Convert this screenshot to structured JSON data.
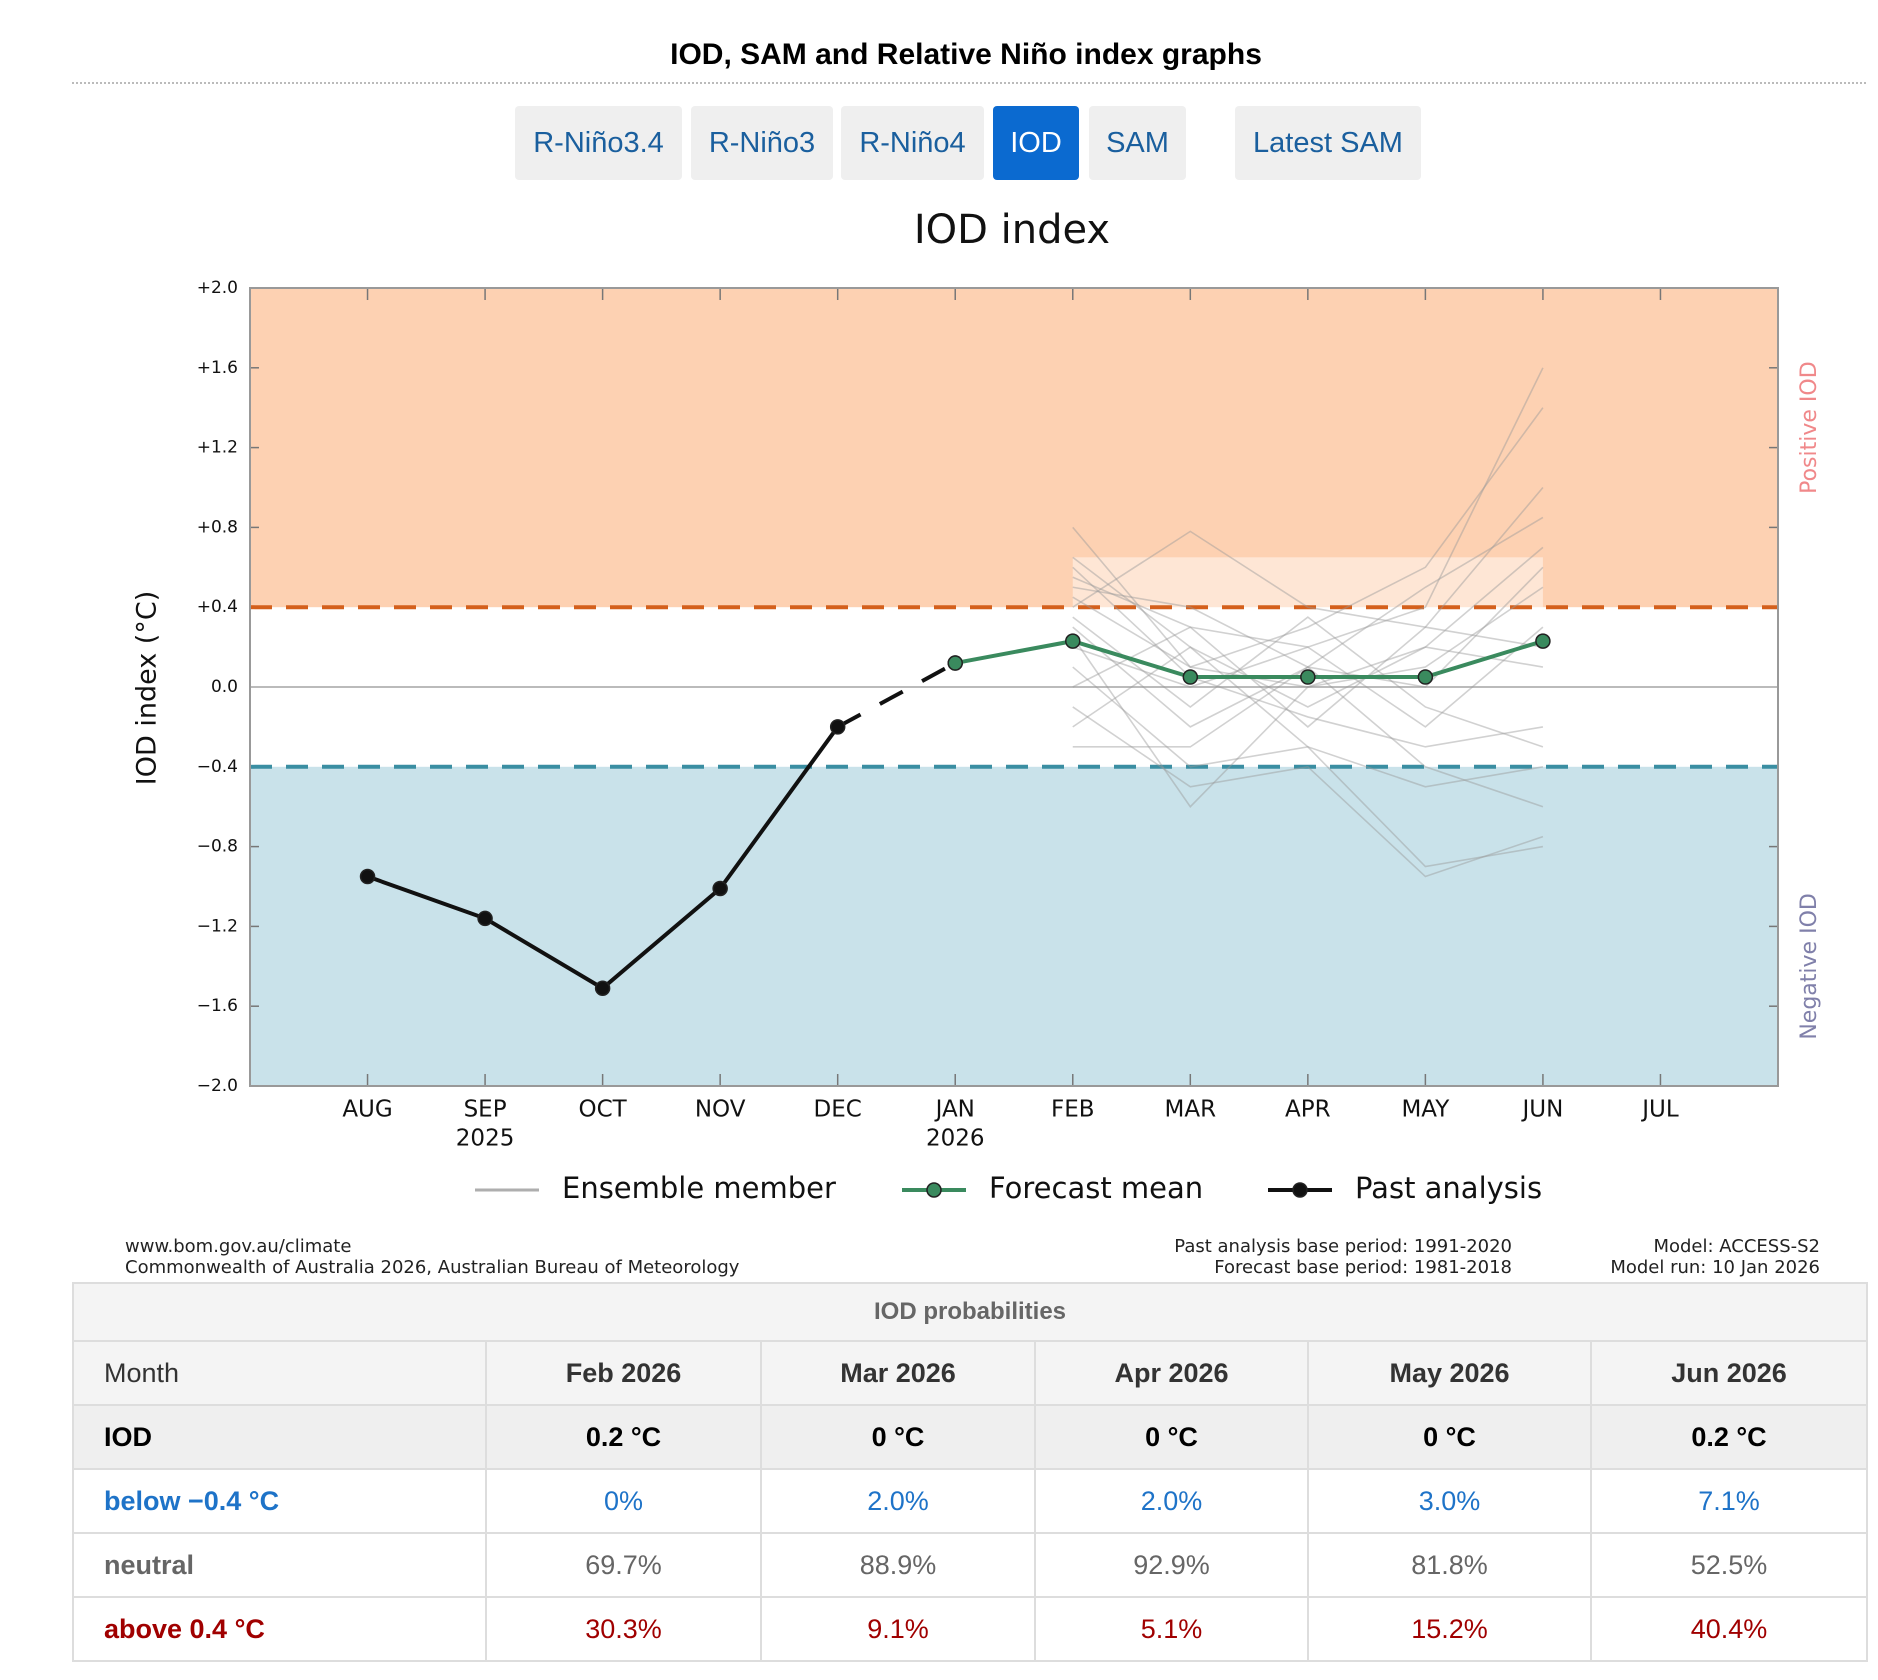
{
  "page_title": "IOD, SAM and Relative Niño index graphs",
  "tabs": {
    "items": [
      "R-Niño3.4",
      "R-Niño3",
      "R-Niño4",
      "IOD",
      "SAM",
      "Latest SAM"
    ],
    "active": 3
  },
  "chart_data": {
    "type": "line",
    "title": "IOD index",
    "y_label": "IOD index (°C)",
    "categories": [
      "AUG",
      "SEP",
      "OCT",
      "NOV",
      "DEC",
      "JAN",
      "FEB",
      "MAR",
      "APR",
      "MAY",
      "JUN",
      "JUL"
    ],
    "category_years": [
      null,
      "2025",
      null,
      null,
      null,
      "2026",
      null,
      null,
      null,
      null,
      null,
      null
    ],
    "ylim": [
      -2.0,
      2.0
    ],
    "yticks": [
      {
        "value": 2.0,
        "label": "+2.0"
      },
      {
        "value": 1.6,
        "label": "+1.6"
      },
      {
        "value": 1.2,
        "label": "+1.2"
      },
      {
        "value": 0.8,
        "label": "+0.8"
      },
      {
        "value": 0.4,
        "label": "+0.4"
      },
      {
        "value": 0.0,
        "label": "0.0"
      },
      {
        "value": -0.4,
        "label": "−0.4"
      },
      {
        "value": -0.8,
        "label": "−0.8"
      },
      {
        "value": -1.2,
        "label": "−1.2"
      },
      {
        "value": -1.6,
        "label": "−1.6"
      },
      {
        "value": -2.0,
        "label": "−2.0"
      }
    ],
    "bands": [
      {
        "label": "Positive IOD",
        "from": 0.4,
        "to": 2.0,
        "threshold": 0.4,
        "color": "#fdd1b2",
        "line_color": "#d4601c",
        "text_color": "#f0888a"
      },
      {
        "label": "Negative IOD",
        "from": -2.0,
        "to": -0.4,
        "threshold": -0.4,
        "color": "#c9e2ea",
        "line_color": "#3a8ea2",
        "text_color": "#8080aa"
      }
    ],
    "series": [
      {
        "name": "Ensemble member",
        "color": "#9a9a9a",
        "markers": false,
        "members": [
          [
            null,
            null,
            null,
            null,
            null,
            null,
            0.55,
            0.3,
            0.2,
            0.4,
            1.6,
            null
          ],
          [
            null,
            null,
            null,
            null,
            null,
            null,
            0.8,
            0.1,
            0.3,
            0.6,
            1.4,
            null
          ],
          [
            null,
            null,
            null,
            null,
            null,
            null,
            0.4,
            0.78,
            0.4,
            0.3,
            1.0,
            null
          ],
          [
            null,
            null,
            null,
            null,
            null,
            null,
            0.3,
            -0.2,
            0.1,
            0.5,
            0.85,
            null
          ],
          [
            null,
            null,
            null,
            null,
            null,
            null,
            0.65,
            0.2,
            -0.1,
            0.2,
            0.7,
            null
          ],
          [
            null,
            null,
            null,
            null,
            null,
            null,
            0.1,
            -0.4,
            -0.3,
            -0.9,
            -0.8,
            null
          ],
          [
            null,
            null,
            null,
            null,
            null,
            null,
            -0.1,
            -0.5,
            -0.4,
            -0.95,
            -0.75,
            null
          ],
          [
            null,
            null,
            null,
            null,
            null,
            null,
            0.2,
            0.0,
            0.2,
            -0.2,
            0.3,
            null
          ],
          [
            null,
            null,
            null,
            null,
            null,
            null,
            0.45,
            0.1,
            0.0,
            0.1,
            0.5,
            null
          ],
          [
            null,
            null,
            null,
            null,
            null,
            null,
            -0.3,
            -0.3,
            0.1,
            -0.4,
            -0.6,
            null
          ],
          [
            null,
            null,
            null,
            null,
            null,
            null,
            0.0,
            0.3,
            -0.2,
            0.3,
            0.2,
            null
          ],
          [
            null,
            null,
            null,
            null,
            null,
            null,
            0.35,
            -0.1,
            0.35,
            -0.1,
            -0.3,
            null
          ],
          [
            null,
            null,
            null,
            null,
            null,
            null,
            0.5,
            0.4,
            0.1,
            0.0,
            0.6,
            null
          ],
          [
            null,
            null,
            null,
            null,
            null,
            null,
            -0.2,
            0.2,
            -0.3,
            -0.5,
            -0.4,
            null
          ],
          [
            null,
            null,
            null,
            null,
            null,
            null,
            0.25,
            -0.6,
            0.0,
            0.2,
            0.1,
            null
          ],
          [
            null,
            null,
            null,
            null,
            null,
            null,
            0.6,
            0.05,
            -0.15,
            -0.3,
            -0.2,
            null
          ]
        ]
      },
      {
        "name": "Past analysis",
        "color": "#111111",
        "markers": true,
        "dashed_segments": [
          4
        ],
        "values": [
          -0.95,
          -1.16,
          -1.51,
          -1.01,
          -0.2,
          0.12,
          null,
          null,
          null,
          null,
          null,
          null
        ]
      },
      {
        "name": "Forecast mean",
        "color": "#3a8a5e",
        "markers": true,
        "values": [
          null,
          null,
          null,
          null,
          null,
          0.12,
          0.23,
          0.05,
          0.05,
          0.05,
          0.23,
          null
        ]
      }
    ],
    "legend_order": [
      0,
      2,
      1
    ]
  },
  "credits": {
    "left": [
      "www.bom.gov.au/climate",
      "Commonwealth of Australia 2026, Australian Bureau of Meteorology"
    ],
    "middle": [
      "Past analysis base period: 1991-2020",
      "Forecast base period: 1981-2018"
    ],
    "right": [
      "Model: ACCESS-S2",
      "Model run: 10 Jan 2026"
    ]
  },
  "table": {
    "caption": "IOD probabilities",
    "header": [
      "Month",
      "Feb 2026",
      "Mar 2026",
      "Apr 2026",
      "May 2026",
      "Jun 2026"
    ],
    "rows": [
      [
        "IOD",
        "0.2 °C",
        "0 °C",
        "0 °C",
        "0 °C",
        "0.2 °C"
      ],
      [
        "below −0.4 °C",
        "0%",
        "2.0%",
        "2.0%",
        "3.0%",
        "7.1%"
      ],
      [
        "neutral",
        "69.7%",
        "88.9%",
        "92.9%",
        "81.8%",
        "52.5%"
      ],
      [
        "above 0.4 °C",
        "30.3%",
        "9.1%",
        "5.1%",
        "15.2%",
        "40.4%"
      ]
    ]
  }
}
